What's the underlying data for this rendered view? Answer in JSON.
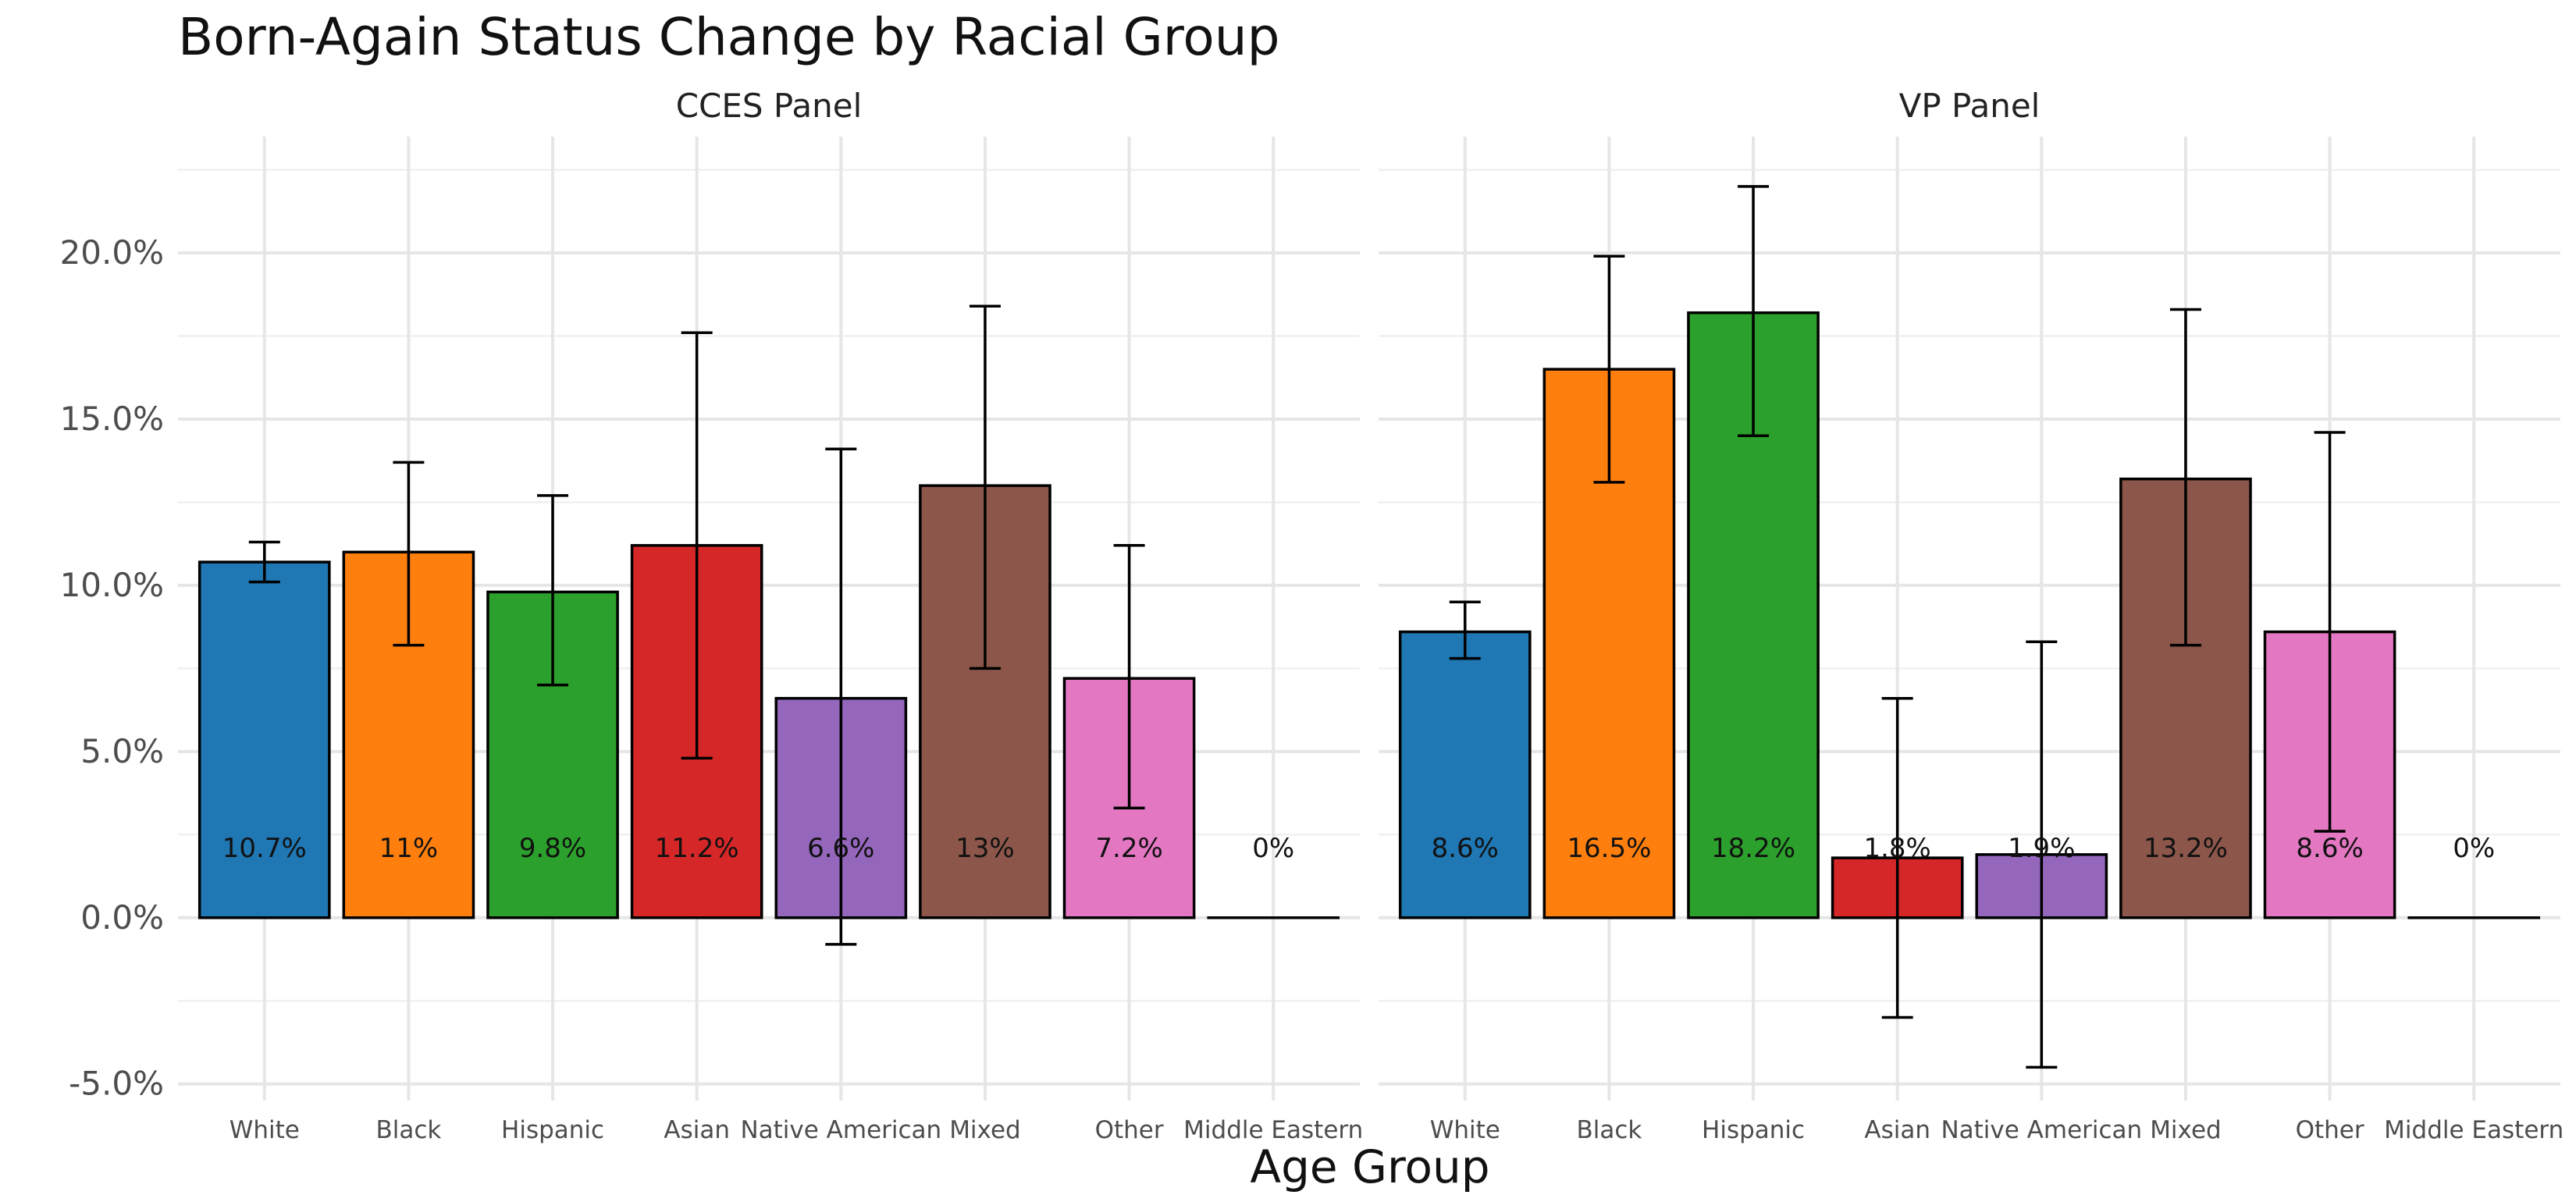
{
  "chart_data": {
    "type": "bar",
    "title": "Born-Again Status Change by Racial Group",
    "xlabel": "Age Group",
    "ylabel": "",
    "ylim": [
      -5.5,
      23.5
    ],
    "yticks": [
      -5,
      0,
      5,
      10,
      15,
      20
    ],
    "ytick_labels": [
      "-5.0%",
      "0.0%",
      "5.0%",
      "10.0%",
      "15.0%",
      "20.0%"
    ],
    "grid": true,
    "legend": "none",
    "categories": [
      "White",
      "Black",
      "Hispanic",
      "Asian",
      "Native American",
      "Mixed",
      "Other",
      "Middle Eastern"
    ],
    "colors": [
      "#1f77b4",
      "#ff7f0e",
      "#2ca02c",
      "#d62728",
      "#9467bd",
      "#8c564b",
      "#e377c2",
      "#7f7f7f"
    ],
    "panels": [
      {
        "name": "CCES Panel",
        "values": [
          10.7,
          11.0,
          9.8,
          11.2,
          6.6,
          13.0,
          7.2,
          0
        ],
        "labels": [
          "10.7%",
          "11%",
          "9.8%",
          "11.2%",
          "6.6%",
          "13%",
          "7.2%",
          "0%"
        ],
        "error_low": [
          10.1,
          8.2,
          7.0,
          4.8,
          -0.8,
          7.5,
          3.3,
          null
        ],
        "error_high": [
          11.3,
          13.7,
          12.7,
          17.6,
          14.1,
          18.4,
          11.2,
          null
        ]
      },
      {
        "name": "VP Panel",
        "values": [
          8.6,
          16.5,
          18.2,
          1.8,
          1.9,
          13.2,
          8.6,
          0
        ],
        "labels": [
          "8.6%",
          "16.5%",
          "18.2%",
          "1.8%",
          "1.9%",
          "13.2%",
          "8.6%",
          "0%"
        ],
        "error_low": [
          7.8,
          13.1,
          14.5,
          -3.0,
          -4.5,
          8.2,
          2.6,
          null
        ],
        "error_high": [
          9.5,
          19.9,
          22.0,
          6.6,
          8.3,
          18.3,
          14.6,
          null
        ]
      }
    ]
  }
}
